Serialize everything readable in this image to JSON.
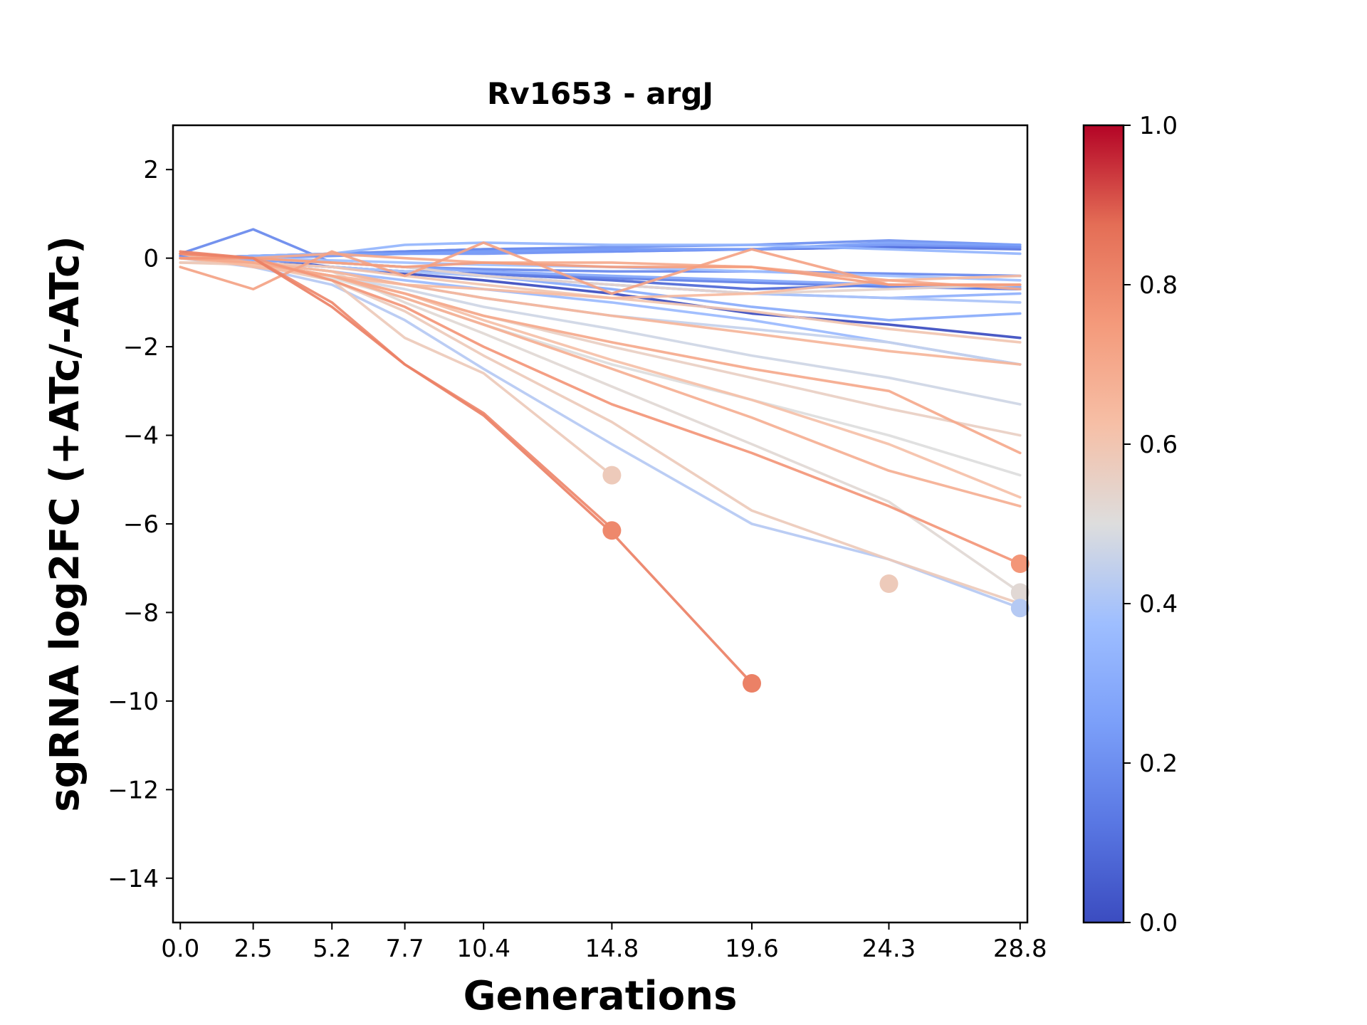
{
  "chart_data": {
    "type": "line",
    "title": "Rv1653 - argJ",
    "xlabel": "Generations",
    "ylabel": "sgRNA log2FC (+ATc/-ATc)",
    "x": [
      0.0,
      2.5,
      5.2,
      7.7,
      10.4,
      14.8,
      19.6,
      24.3,
      28.8
    ],
    "x_tick_labels": [
      "0.0",
      "2.5",
      "5.2",
      "7.7",
      "10.4",
      "14.8",
      "19.6",
      "24.3",
      "28.8"
    ],
    "ylim": [
      -15,
      3
    ],
    "y_ticks": [
      2,
      0,
      -2,
      -4,
      -6,
      -8,
      -10,
      -12,
      -14
    ],
    "y_tick_labels": [
      "2",
      "0",
      "−2",
      "−4",
      "−6",
      "−8",
      "−10",
      "−12",
      "−14"
    ],
    "grid": false,
    "colorbar": {
      "colormap": "coolwarm",
      "range": [
        0,
        1
      ],
      "ticks": [
        "0.0",
        "0.2",
        "0.4",
        "0.6",
        "0.8",
        "1.0"
      ],
      "low_color": "#3b4cc0",
      "mid_color": "#dddddd",
      "high_color": "#b40426"
    },
    "series": [
      {
        "c": 0.0,
        "values": [
          0.1,
          0.0,
          -0.2,
          -0.35,
          -0.5,
          -0.8,
          -1.25,
          -1.5,
          -1.8
        ]
      },
      {
        "c": 0.05,
        "values": [
          0.1,
          0.0,
          0.1,
          0.15,
          0.2,
          0.2,
          0.2,
          0.25,
          0.25
        ]
      },
      {
        "c": 0.08,
        "values": [
          0.0,
          -0.1,
          -0.2,
          -0.3,
          -0.35,
          -0.5,
          -0.7,
          -0.6,
          -0.7
        ]
      },
      {
        "c": 0.12,
        "values": [
          0.0,
          0.05,
          0.1,
          0.1,
          0.15,
          0.15,
          0.2,
          0.25,
          0.2
        ]
      },
      {
        "c": 0.15,
        "values": [
          0.05,
          -0.1,
          -0.2,
          -0.3,
          -0.35,
          -0.45,
          -0.55,
          -0.65,
          -0.7
        ]
      },
      {
        "c": 0.18,
        "values": [
          0.1,
          0.65,
          -0.1,
          -0.2,
          -0.25,
          -0.3,
          -0.3,
          -0.35,
          -0.4
        ]
      },
      {
        "c": 0.2,
        "values": [
          0.0,
          0.05,
          0.1,
          0.15,
          0.2,
          0.25,
          0.3,
          0.4,
          0.3
        ]
      },
      {
        "c": 0.22,
        "values": [
          0.0,
          0.0,
          0.05,
          0.1,
          0.1,
          0.15,
          0.2,
          0.3,
          0.25
        ]
      },
      {
        "c": 0.25,
        "values": [
          0.0,
          0.05,
          0.1,
          0.1,
          0.15,
          0.2,
          0.2,
          0.35,
          0.3
        ]
      },
      {
        "c": 0.28,
        "values": [
          0.0,
          -0.05,
          -0.1,
          -0.2,
          -0.3,
          -0.4,
          -0.5,
          -0.6,
          -0.65
        ]
      },
      {
        "c": 0.3,
        "values": [
          0.0,
          0.0,
          -0.1,
          -0.2,
          -0.4,
          -0.7,
          -1.1,
          -1.4,
          -1.25
        ]
      },
      {
        "c": 0.32,
        "values": [
          0.0,
          -0.1,
          -0.2,
          -0.3,
          -0.4,
          -0.6,
          -0.8,
          -0.9,
          -0.8
        ]
      },
      {
        "c": 0.34,
        "values": [
          0.0,
          0.05,
          0.1,
          0.3,
          0.35,
          0.3,
          0.3,
          0.2,
          0.1
        ]
      },
      {
        "c": 0.36,
        "values": [
          0.0,
          -0.1,
          -0.3,
          -0.5,
          -0.7,
          -1.0,
          -1.4,
          -1.9,
          -2.4
        ]
      },
      {
        "c": 0.38,
        "values": [
          0.0,
          0.0,
          -0.05,
          -0.1,
          -0.15,
          -0.2,
          -0.3,
          -0.4,
          -0.5
        ]
      },
      {
        "c": 0.4,
        "values": [
          0.0,
          -0.1,
          -0.2,
          -0.3,
          -0.4,
          -0.6,
          -0.8,
          -0.9,
          -1.0
        ]
      },
      {
        "c": 0.42,
        "values": [
          0.0,
          -0.2,
          -0.6,
          -1.4,
          -2.5,
          -4.2,
          -6.0,
          -6.8,
          -7.9
        ]
      },
      {
        "c": 0.45,
        "values": [
          0.0,
          -0.1,
          -0.3,
          -0.6,
          -0.9,
          -1.3,
          -1.6,
          -1.9,
          -2.4
        ]
      },
      {
        "c": 0.47,
        "values": [
          0.0,
          -0.1,
          -0.4,
          -0.7,
          -1.1,
          -1.6,
          -2.2,
          -2.7,
          -3.3
        ]
      },
      {
        "c": 0.5,
        "values": [
          0.0,
          -0.15,
          -0.45,
          -0.9,
          -1.5,
          -2.4,
          -3.2,
          -4.0,
          -4.9
        ]
      },
      {
        "c": 0.52,
        "values": [
          0.0,
          -0.1,
          -0.3,
          -1.0,
          -1.7,
          -2.9,
          -4.2,
          -5.5,
          -7.55
        ]
      },
      {
        "c": 0.54,
        "values": [
          0.0,
          0.0,
          -0.1,
          -0.2,
          -0.4,
          -0.6,
          -0.8,
          -0.7,
          -0.6
        ]
      },
      {
        "c": 0.56,
        "values": [
          0.0,
          -0.1,
          -0.4,
          -0.8,
          -1.3,
          -2.0,
          -2.7,
          -3.4,
          -4.0
        ]
      },
      {
        "c": 0.58,
        "values": [
          -0.1,
          -0.15,
          -0.5,
          -1.2,
          -2.2,
          -3.7,
          -5.7,
          -6.8,
          -7.8
        ]
      },
      {
        "c": 0.58,
        "values": [
          -0.1,
          -0.1,
          -0.5,
          -1.8,
          -2.6,
          -4.9,
          null,
          -7.35,
          null
        ]
      },
      {
        "c": 0.6,
        "values": [
          0.0,
          -0.1,
          -0.2,
          -0.4,
          -0.6,
          -0.9,
          -1.2,
          -1.6,
          -1.9
        ]
      },
      {
        "c": 0.62,
        "values": [
          0.0,
          -0.15,
          -0.4,
          -0.8,
          -1.4,
          -2.3,
          -3.2,
          -4.2,
          -5.4
        ]
      },
      {
        "c": 0.64,
        "values": [
          0.1,
          -0.2,
          -0.4,
          -0.6,
          -0.7,
          -0.9,
          -0.8,
          -0.5,
          -0.4
        ]
      },
      {
        "c": 0.66,
        "values": [
          0.1,
          -0.1,
          -0.3,
          -0.6,
          -0.9,
          -1.3,
          -1.7,
          -2.1,
          -2.4
        ]
      },
      {
        "c": 0.68,
        "values": [
          0.0,
          -0.1,
          -0.4,
          -0.9,
          -1.5,
          -2.5,
          -3.6,
          -4.8,
          -5.6
        ]
      },
      {
        "c": 0.7,
        "values": [
          0.1,
          0.0,
          0.1,
          0.0,
          -0.1,
          -0.1,
          -0.2,
          -0.5,
          -0.7
        ]
      },
      {
        "c": 0.7,
        "values": [
          0.0,
          -0.1,
          -0.4,
          -0.8,
          -1.3,
          -1.9,
          -2.5,
          -3.0,
          -4.4
        ]
      },
      {
        "c": 0.72,
        "values": [
          -0.2,
          -0.7,
          0.15,
          -0.4,
          0.35,
          -0.8,
          0.2,
          -0.6,
          -0.6
        ]
      },
      {
        "c": 0.74,
        "values": [
          0.1,
          0.0,
          -0.1,
          -0.2,
          -0.1,
          -0.2,
          -0.2,
          -0.6,
          -0.6
        ]
      },
      {
        "c": 0.76,
        "values": [
          0.0,
          0.0,
          -0.5,
          -1.1,
          -2.0,
          -3.3,
          -4.4,
          -5.6,
          -6.9
        ]
      },
      {
        "c": 0.8,
        "values": [
          0.1,
          0.0,
          -1.0,
          -2.4,
          -3.5,
          -6.1,
          null,
          null,
          null
        ]
      },
      {
        "c": 0.82,
        "values": [
          0.15,
          0.0,
          -1.1,
          -2.4,
          -3.55,
          -6.2,
          -9.6,
          null,
          null
        ]
      }
    ],
    "end_markers": [
      {
        "x": 14.8,
        "y": -4.9,
        "c": 0.58
      },
      {
        "x": 14.8,
        "y": -6.15,
        "c": 0.8
      },
      {
        "x": 19.6,
        "y": -9.6,
        "c": 0.82
      },
      {
        "x": 24.3,
        "y": -7.35,
        "c": 0.58
      },
      {
        "x": 28.8,
        "y": -6.9,
        "c": 0.76
      },
      {
        "x": 28.8,
        "y": -7.55,
        "c": 0.52
      },
      {
        "x": 28.8,
        "y": -7.9,
        "c": 0.42
      }
    ]
  }
}
